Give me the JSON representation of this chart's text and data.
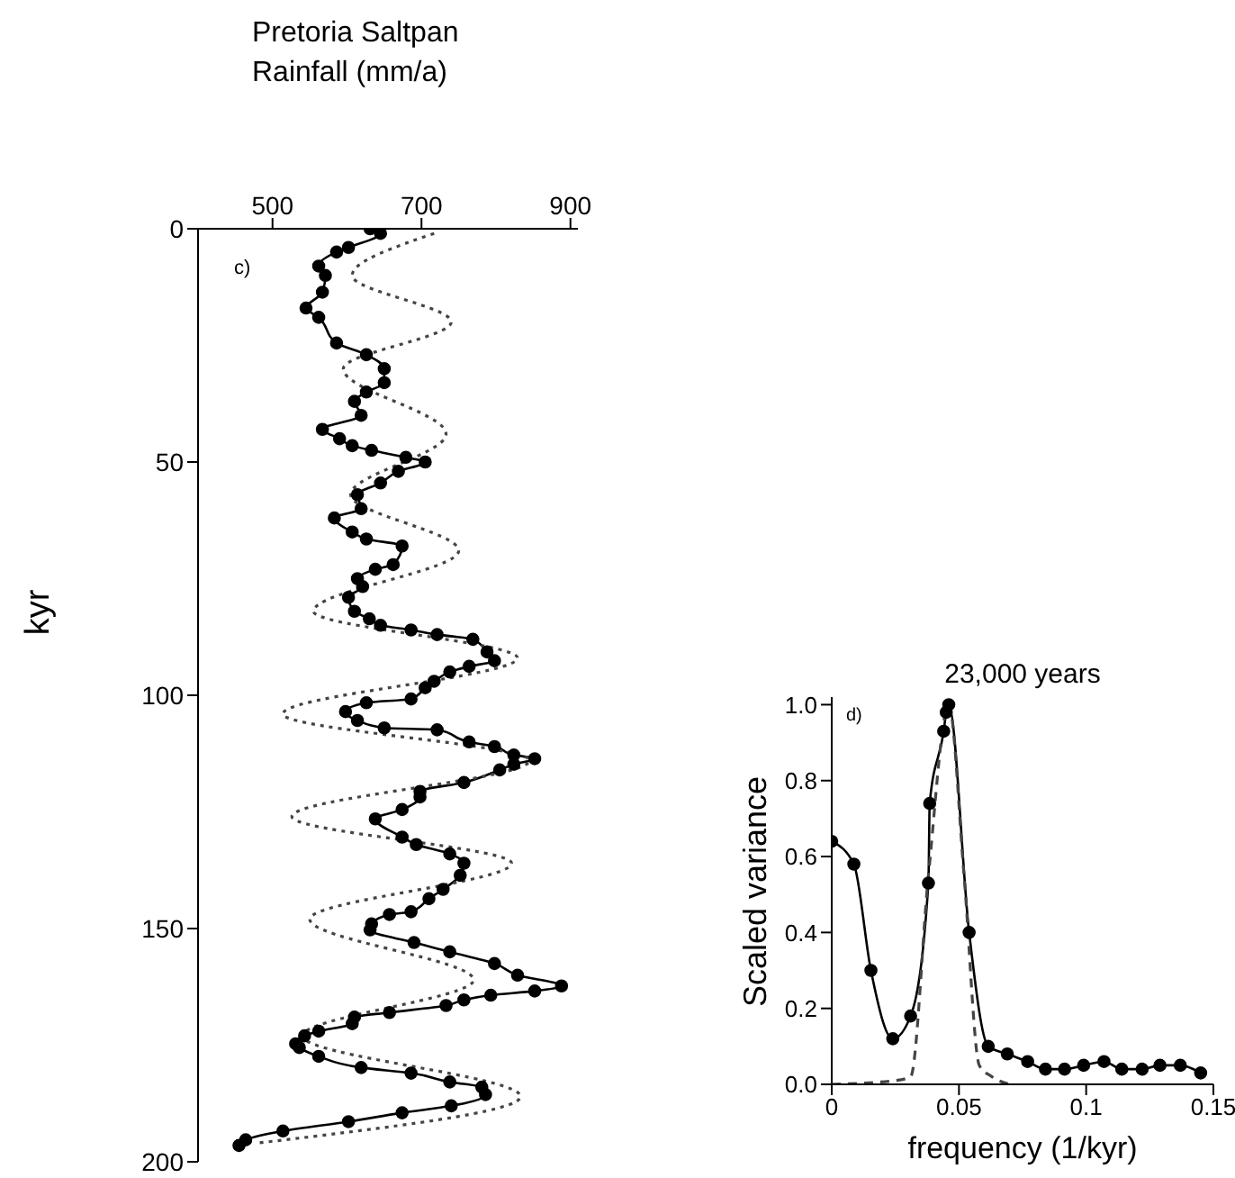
{
  "chart_data": [
    {
      "type": "line",
      "orientation": "horizontal",
      "title": "Pretoria Saltpan",
      "xlabel": "Rainfall (mm/a)",
      "ylabel": "kyr",
      "annotations": [
        "c)"
      ],
      "xlim": [
        400,
        910
      ],
      "xticks": [
        500,
        700,
        900
      ],
      "ylim": [
        200,
        0
      ],
      "yticks": [
        0,
        50,
        100,
        150,
        200
      ],
      "grid": false,
      "series": [
        {
          "color": "#000000",
          "marker": "circle",
          "line_style": "solid",
          "x": [
            0,
            1,
            4,
            5,
            8,
            10,
            13.6,
            17,
            19,
            24.5,
            27,
            30,
            33,
            35,
            37,
            40,
            43,
            45,
            46.5,
            47.5,
            49,
            50,
            52,
            54.5,
            57,
            60,
            62,
            65,
            66.5,
            68,
            72,
            73,
            75,
            76.7,
            79,
            82,
            83.6,
            85,
            86,
            87,
            88,
            90.7,
            92.6,
            93.8,
            95,
            97,
            98.4,
            100.8,
            101.6,
            103.5,
            105.4,
            107,
            107.4,
            110,
            111,
            112.8,
            113.6,
            114.8,
            116,
            118.7,
            120.6,
            121.8,
            124.5,
            126.5,
            130.4,
            132,
            134,
            136,
            138.6,
            141.6,
            143.6,
            146.4,
            147,
            149,
            150.3,
            153,
            155,
            157.5,
            160,
            162.3,
            163.4,
            164.3,
            165.3,
            166.5,
            168,
            169,
            170.4,
            172,
            173,
            174.7,
            175.5,
            177.4,
            179.8,
            181,
            182.9,
            184,
            185.6,
            188,
            189.5,
            191.4,
            193.4,
            195.3,
            196.5
          ],
          "values": [
            631,
            645,
            602,
            586,
            562,
            571,
            567,
            545,
            562,
            586,
            626,
            650,
            650,
            626,
            610,
            619,
            567,
            590,
            607,
            633,
            679,
            705,
            669,
            645,
            614,
            619,
            583,
            607,
            626,
            674,
            662,
            638,
            614,
            621,
            602,
            610,
            630,
            645,
            686,
            721,
            769,
            788,
            798,
            764,
            738,
            717,
            705,
            686,
            626,
            598,
            614,
            650,
            721,
            764,
            798,
            824,
            852,
            824,
            805,
            757,
            698,
            698,
            674,
            638,
            674,
            693,
            738,
            757,
            752,
            729,
            710,
            686,
            657,
            633,
            631,
            690,
            738,
            798,
            829,
            888,
            852,
            793,
            757,
            733,
            657,
            610,
            607,
            562,
            543,
            531,
            536,
            562,
            619,
            686,
            738,
            781,
            786,
            740,
            674,
            602,
            514,
            464,
            455
          ]
        },
        {
          "color": "#444444",
          "marker": "none",
          "line_style": "dotted",
          "x": [
            1,
            10,
            20,
            30,
            44,
            57,
            69,
            82,
            92,
            104,
            114,
            126,
            136,
            148,
            161,
            173,
            186,
            196
          ],
          "values": [
            717,
            607,
            740,
            595,
            733,
            605,
            750,
            555,
            829,
            514,
            845,
            526,
            821,
            550,
            770,
            540,
            833,
            479
          ]
        }
      ]
    },
    {
      "type": "line",
      "title": "23,000 years",
      "xlabel": "frequency (1/kyr)",
      "ylabel": "Scaled variance",
      "annotations": [
        "d)"
      ],
      "xlim": [
        0,
        0.15
      ],
      "xticks": [
        0,
        0.05,
        0.1,
        0.15
      ],
      "ylim": [
        0,
        1.02
      ],
      "yticks": [
        {
          "value": 0,
          "label": "0.0"
        },
        0.2,
        0.4,
        0.6,
        0.8,
        {
          "value": 1,
          "label": "1.0"
        }
      ],
      "grid": false,
      "series": [
        {
          "color": "#000000",
          "marker": "circle",
          "line_style": "solid",
          "x": [
            0,
            0.0087,
            0.0154,
            0.024,
            0.031,
            0.038,
            0.0385,
            0.044,
            0.045,
            0.046,
            0.054,
            0.0615,
            0.069,
            0.077,
            0.084,
            0.0915,
            0.099,
            0.107,
            0.114,
            0.122,
            0.129,
            0.137,
            0.145
          ],
          "values": [
            0.64,
            0.58,
            0.3,
            0.12,
            0.18,
            0.53,
            0.74,
            0.93,
            0.98,
            1.0,
            0.4,
            0.1,
            0.08,
            0.06,
            0.04,
            0.04,
            0.05,
            0.06,
            0.04,
            0.04,
            0.05,
            0.05,
            0.03
          ]
        },
        {
          "color": "#444444",
          "marker": "none",
          "line_style": "dashed",
          "x": [
            0,
            0.025,
            0.031,
            0.038,
            0.046,
            0.052,
            0.058,
            0.063,
            0.07
          ],
          "values": [
            0,
            0.01,
            0.02,
            0.55,
            1.0,
            0.55,
            0.05,
            0.02,
            0
          ]
        }
      ]
    }
  ]
}
